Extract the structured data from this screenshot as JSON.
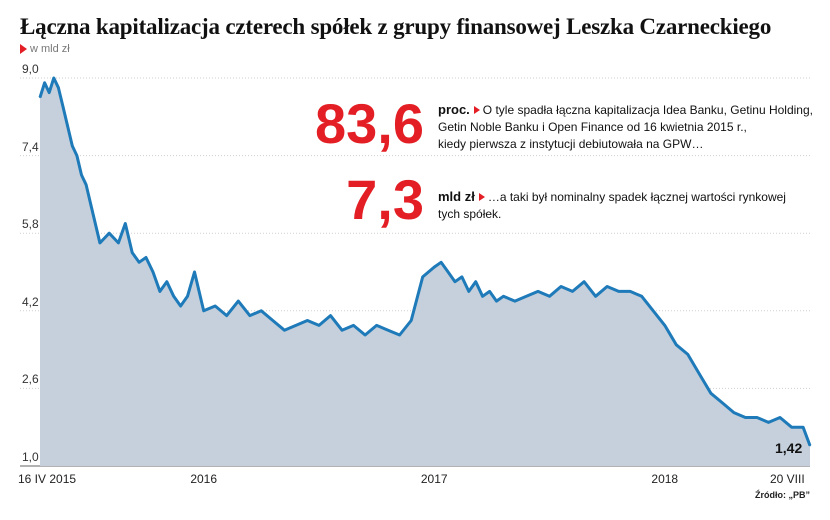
{
  "title": "Łączna kapitalizacja czterech spółek z grupy finansowej Leszka Czarneckiego",
  "unit_label": "w mld zł",
  "source": "Źródło: „PB”",
  "annotations": [
    {
      "number": "83,6",
      "unit": "proc.",
      "text_line1": "O tyle spadła łączna kapitalizacja Idea Banku, Getinu Holding,",
      "text_line2": "Getin Noble Banku i Open Finance od 16 kwietnia 2015 r.,",
      "text_line3": "kiedy pierwsza z instytucji debiutowała na GPW…"
    },
    {
      "number": "7,3",
      "unit": "mld zł",
      "text_line1": "…a taki był nominalny spadek łącznej wartości rynkowej",
      "text_line2": "tych spółek."
    }
  ],
  "colors": {
    "line": "#1e7ab8",
    "area": "#c5d0dc",
    "accent": "#e31e24",
    "grid": "#cfcfcf"
  },
  "chart_data": {
    "type": "area",
    "title": "Łączna kapitalizacja czterech spółek z grupy finansowej Leszka Czarneckiego",
    "ylabel": "w mld zł",
    "ylim": [
      1.0,
      9.0
    ],
    "y_ticks": [
      "9,0",
      "7,4",
      "5,8",
      "4,2",
      "2,6",
      "1,0"
    ],
    "y_tick_values": [
      9.0,
      7.4,
      5.8,
      4.2,
      2.6,
      1.0
    ],
    "x_ticks": [
      "16 IV 2015",
      "2016",
      "2017",
      "2018",
      "20 VIII"
    ],
    "x_tick_values": [
      2015.29,
      2016.0,
      2017.0,
      2018.0,
      2018.63
    ],
    "grid": true,
    "end_label": "1,42",
    "series": [
      {
        "x": [
          2015.29,
          2015.31,
          2015.33,
          2015.35,
          2015.37,
          2015.39,
          2015.41,
          2015.43,
          2015.45,
          2015.47,
          2015.49,
          2015.51,
          2015.53,
          2015.55,
          2015.57,
          2015.59,
          2015.61,
          2015.63,
          2015.66,
          2015.69,
          2015.72,
          2015.75,
          2015.78,
          2015.81,
          2015.84,
          2015.87,
          2015.9,
          2015.93,
          2015.96,
          2016.0,
          2016.05,
          2016.1,
          2016.15,
          2016.2,
          2016.25,
          2016.3,
          2016.35,
          2016.4,
          2016.45,
          2016.5,
          2016.55,
          2016.6,
          2016.65,
          2016.7,
          2016.75,
          2016.8,
          2016.85,
          2016.9,
          2016.95,
          2017.0,
          2017.03,
          2017.06,
          2017.09,
          2017.12,
          2017.15,
          2017.18,
          2017.21,
          2017.24,
          2017.27,
          2017.3,
          2017.35,
          2017.4,
          2017.45,
          2017.5,
          2017.55,
          2017.6,
          2017.65,
          2017.7,
          2017.75,
          2017.8,
          2017.85,
          2017.9,
          2017.95,
          2018.0,
          2018.05,
          2018.1,
          2018.15,
          2018.2,
          2018.25,
          2018.3,
          2018.35,
          2018.4,
          2018.45,
          2018.5,
          2018.55,
          2018.6,
          2018.63
        ],
        "y": [
          8.6,
          8.9,
          8.7,
          9.0,
          8.8,
          8.4,
          8.0,
          7.6,
          7.4,
          7.0,
          6.8,
          6.4,
          6.0,
          5.6,
          5.7,
          5.8,
          5.7,
          5.6,
          6.0,
          5.4,
          5.2,
          5.3,
          5.0,
          4.6,
          4.8,
          4.5,
          4.3,
          4.5,
          5.0,
          4.2,
          4.3,
          4.1,
          4.4,
          4.1,
          4.2,
          4.0,
          3.8,
          3.9,
          4.0,
          3.9,
          4.1,
          3.8,
          3.9,
          3.7,
          3.9,
          3.8,
          3.7,
          4.0,
          4.9,
          5.1,
          5.2,
          5.0,
          4.8,
          4.9,
          4.6,
          4.8,
          4.5,
          4.6,
          4.4,
          4.5,
          4.4,
          4.5,
          4.6,
          4.5,
          4.7,
          4.6,
          4.8,
          4.5,
          4.7,
          4.6,
          4.6,
          4.5,
          4.2,
          3.9,
          3.5,
          3.3,
          2.9,
          2.5,
          2.3,
          2.1,
          2.0,
          2.0,
          1.9,
          2.0,
          1.8,
          1.8,
          1.42
        ]
      }
    ]
  }
}
